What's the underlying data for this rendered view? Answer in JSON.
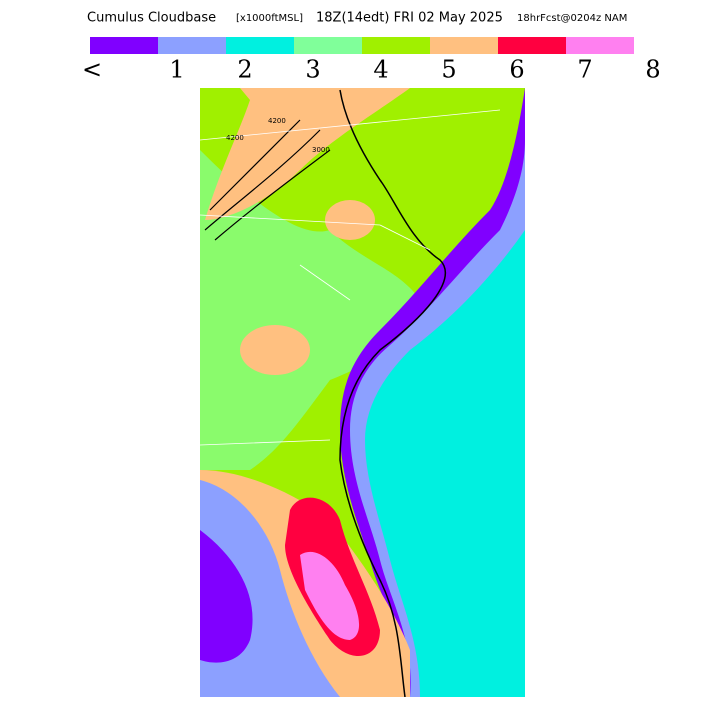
{
  "title": "Cumulus Cloudbase",
  "units": "[x1000ftMSL]",
  "valid": "18Z(14edt) FRI 02 May 2025",
  "forecast": "18hrFcst@0204z NAM",
  "legend": {
    "colors": [
      "#8000ff",
      "#8ca0ff",
      "#00f0e0",
      "#80ff9a",
      "#a0f000",
      "#ffc080",
      "#ff0040",
      "#ff80f0"
    ],
    "labels": [
      "<",
      "1",
      "2",
      "3",
      "4",
      "5",
      "6",
      "7",
      "8"
    ]
  },
  "contour_labels": [
    "4200",
    "4200",
    "3000"
  ]
}
